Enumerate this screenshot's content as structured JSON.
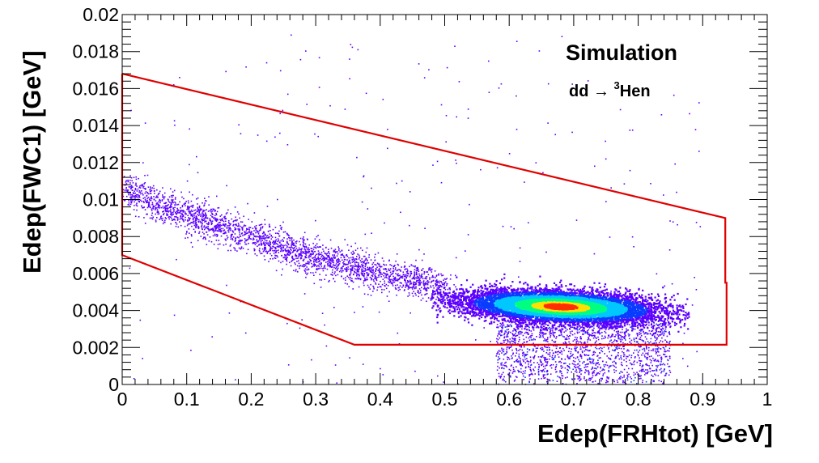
{
  "chart_data": {
    "type": "scatter",
    "subtype": "2d-histogram-density",
    "xlabel": "Edep(FRHtot) [GeV]",
    "ylabel": "Edep(FWC1) [GeV]",
    "xlim": [
      0,
      1
    ],
    "ylim": [
      0,
      0.02
    ],
    "x_ticks": [
      "0",
      "0.1",
      "0.2",
      "0.3",
      "0.4",
      "0.5",
      "0.6",
      "0.7",
      "0.8",
      "0.9",
      "1"
    ],
    "y_ticks": [
      "0",
      "0.002",
      "0.004",
      "0.006",
      "0.008",
      "0.01",
      "0.012",
      "0.014",
      "0.016",
      "0.018",
      "0.02"
    ],
    "grid": false,
    "annotations": {
      "simulation": "Simulation",
      "reaction_prefix": "dd → ",
      "reaction_sup": "3",
      "reaction_suffix": "Hen"
    },
    "cut_polygon": {
      "color": "#e00000",
      "points": [
        [
          0.0,
          0.0168
        ],
        [
          0.935,
          0.009
        ],
        [
          0.935,
          0.0055
        ],
        [
          0.937,
          0.0055
        ],
        [
          0.937,
          0.00215
        ],
        [
          0.36,
          0.00215
        ],
        [
          0.0,
          0.007
        ],
        [
          0.0,
          0.0168
        ]
      ]
    },
    "main_cluster": {
      "x_center": 0.68,
      "y_center": 0.0042,
      "x_range": [
        0.48,
        0.88
      ],
      "y_range": [
        0.003,
        0.0056
      ]
    },
    "band_points": [
      [
        0.0,
        0.0105
      ],
      [
        0.1,
        0.0092
      ],
      [
        0.2,
        0.008
      ],
      [
        0.3,
        0.0068
      ],
      [
        0.4,
        0.006
      ],
      [
        0.5,
        0.0052
      ]
    ],
    "tail_region": {
      "x_range": [
        0.58,
        0.85
      ],
      "y_range": [
        0.0,
        0.0035
      ]
    },
    "colors": [
      "#5b00ff",
      "#0a3cff",
      "#00c8ff",
      "#00ff80",
      "#ffe000",
      "#ff3000"
    ]
  }
}
